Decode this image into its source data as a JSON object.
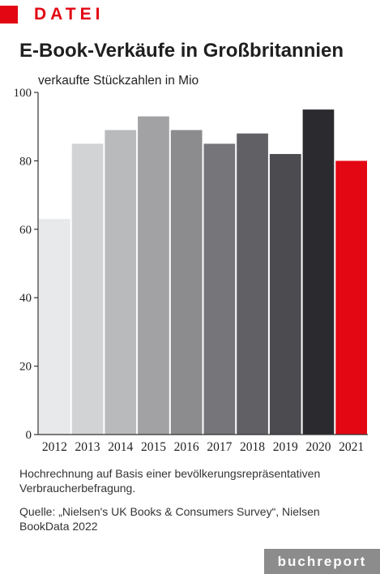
{
  "header": {
    "label": "DATEI"
  },
  "chart_data": {
    "type": "bar",
    "title": "E-Book-Verkäufe in Großbritannien",
    "subtitle": "verkaufte Stückzahlen in Mio",
    "xlabel": "",
    "ylabel": "",
    "categories": [
      "2012",
      "2013",
      "2014",
      "2015",
      "2016",
      "2017",
      "2018",
      "2019",
      "2020",
      "2021"
    ],
    "values": [
      63,
      85,
      89,
      93,
      89,
      85,
      88,
      82,
      95,
      80
    ],
    "ylim": [
      0,
      100
    ],
    "yticks": [
      0,
      20,
      40,
      60,
      80,
      100
    ],
    "grid": false,
    "bar_colors": [
      "#e8e9ea",
      "#d2d3d5",
      "#b9babc",
      "#a2a2a5",
      "#8c8c8f",
      "#75757a",
      "#606065",
      "#4b4b50",
      "#2b2b2f",
      "#e30613"
    ]
  },
  "footnote": "Hochrechnung auf Basis einer bevölkerungsrepräsentativen Verbraucherbefragung.",
  "source": "Quelle: „Nielsen's UK Books & Consumers Survey“, Nielsen BookData 2022",
  "brand": "buchreport",
  "colors": {
    "accent": "#e30613",
    "brand_bg": "#8c8c8c"
  }
}
